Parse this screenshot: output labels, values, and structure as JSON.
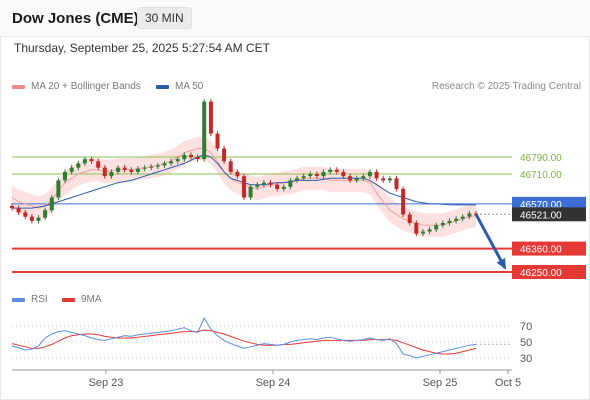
{
  "header": {
    "title": "Dow Jones (CME)",
    "timeframe": "30 MIN"
  },
  "timestamp": "Thursday, September 25, 2025 5:27:54 AM CET",
  "legend": {
    "bollinger": {
      "label": "MA 20 + Bollinger Bands",
      "color": "#f08a8a"
    },
    "ma50": {
      "label": "MA 50",
      "color": "#2b5caa"
    }
  },
  "credit": "Research © 2025 Trading Central",
  "price_labels": {
    "r2": "46790.00",
    "r1": "46710.00",
    "pivot": "46570.00",
    "current": "46521.00",
    "s1": "46360.00",
    "s2": "46250.00"
  },
  "rsi_legend": {
    "rsi": {
      "label": "RSI",
      "color": "#5b8ee6"
    },
    "ma9": {
      "label": "9MA",
      "color": "#e53935"
    }
  },
  "rsi_levels": [
    "70",
    "50",
    "30"
  ],
  "x_axis": [
    "Sep 23",
    "Sep 24",
    "Sep 25",
    "Oct 5"
  ],
  "colors": {
    "up": "#2e7d32",
    "down": "#c62828",
    "band_fill": "#fde0e0",
    "resistance": "#8bc34a",
    "support": "#e53935",
    "pivot": "#3b6fd6",
    "arrow": "#2b5caa"
  },
  "chart_data": {
    "type": "candlestick",
    "y_unit": "price",
    "levels": {
      "resistance": [
        46790,
        46710
      ],
      "pivot": 46570,
      "current": 46521,
      "support": [
        46360,
        46250
      ]
    },
    "close": [
      46550,
      46530,
      46510,
      46490,
      46505,
      46540,
      46600,
      46680,
      46720,
      46740,
      46760,
      46780,
      46770,
      46740,
      46700,
      46720,
      46740,
      46730,
      46720,
      46735,
      46740,
      46745,
      46750,
      46760,
      46770,
      46780,
      46800,
      46790,
      46780,
      47050,
      46900,
      46830,
      46770,
      46720,
      46700,
      46600,
      46650,
      46660,
      46670,
      46660,
      46640,
      46650,
      46680,
      46690,
      46700,
      46710,
      46700,
      46720,
      46730,
      46720,
      46700,
      46680,
      46690,
      46700,
      46720,
      46690,
      46680,
      46690,
      46640,
      46520,
      46480,
      46430,
      46440,
      46450,
      46470,
      46480,
      46490,
      46500,
      46510,
      46525,
      46521
    ],
    "ma20": [
      46600,
      46580,
      46570,
      46560,
      46550,
      46560,
      46590,
      46630,
      46670,
      46690,
      46710,
      46720,
      46730,
      46730,
      46720,
      46725,
      46730,
      46730,
      46730,
      46735,
      46740,
      46745,
      46750,
      46760,
      46770,
      46790,
      46810,
      46820,
      46830,
      46830,
      46810,
      46770,
      46720,
      46690,
      46670,
      46660,
      46650,
      46640,
      46650,
      46660,
      46660,
      46670,
      46670,
      46680,
      46690,
      46690,
      46690,
      46690,
      46680,
      46680,
      46680,
      46680,
      46680,
      46680,
      46670,
      46620,
      46580,
      46540,
      46520,
      46500,
      46490,
      46480,
      46470,
      46470,
      46470,
      46470,
      46480,
      46490,
      46500,
      46510,
      46515
    ],
    "ma50": [
      46550,
      46550,
      46550,
      46550,
      46555,
      46560,
      46570,
      46580,
      46590,
      46600,
      46610,
      46620,
      46630,
      46640,
      46650,
      46660,
      46670,
      46675,
      46680,
      46690,
      46700,
      46710,
      46720,
      46730,
      46740,
      46750,
      46760,
      46775,
      46790,
      46800,
      46790,
      46760,
      46720,
      46690,
      46680,
      46670,
      46660,
      46660,
      46660,
      46665,
      46670,
      46670,
      46675,
      46680,
      46680,
      46680,
      46680,
      46685,
      46690,
      46690,
      46690,
      46690,
      46690,
      46690,
      46680,
      46660,
      46640,
      46620,
      46610,
      46600,
      46590,
      46580,
      46575,
      46570,
      46570,
      46568,
      46566,
      46565,
      46565,
      46565,
      46565
    ],
    "rsi": [
      45,
      43,
      40,
      41,
      45,
      55,
      60,
      63,
      64,
      62,
      60,
      58,
      55,
      53,
      52,
      54,
      56,
      58,
      57,
      59,
      60,
      61,
      62,
      63,
      64,
      66,
      68,
      64,
      62,
      80,
      66,
      58,
      52,
      48,
      45,
      42,
      44,
      46,
      48,
      47,
      46,
      47,
      50,
      52,
      53,
      54,
      53,
      55,
      56,
      54,
      52,
      51,
      52,
      53,
      55,
      53,
      52,
      54,
      48,
      35,
      33,
      30,
      32,
      34,
      36,
      38,
      40,
      42,
      44,
      46,
      47
    ],
    "rsi_ma9": [
      48,
      46,
      44,
      42,
      42,
      44,
      47,
      51,
      55,
      58,
      59,
      60,
      60,
      59,
      57,
      56,
      55,
      55,
      55,
      56,
      57,
      58,
      59,
      60,
      61,
      62,
      63,
      63,
      63,
      65,
      64,
      62,
      60,
      57,
      54,
      51,
      49,
      47,
      46,
      46,
      46,
      47,
      47,
      48,
      49,
      50,
      51,
      52,
      52,
      52,
      52,
      52,
      52,
      52,
      53,
      53,
      53,
      53,
      52,
      49,
      46,
      43,
      40,
      38,
      36,
      35,
      35,
      36,
      38,
      40,
      42
    ],
    "rsi_range": [
      20,
      80
    ],
    "x_ticks": [
      "Sep 23",
      "Sep 24",
      "Sep 25",
      "Oct 5"
    ],
    "projection": {
      "from": 46521,
      "to": 46250
    }
  }
}
